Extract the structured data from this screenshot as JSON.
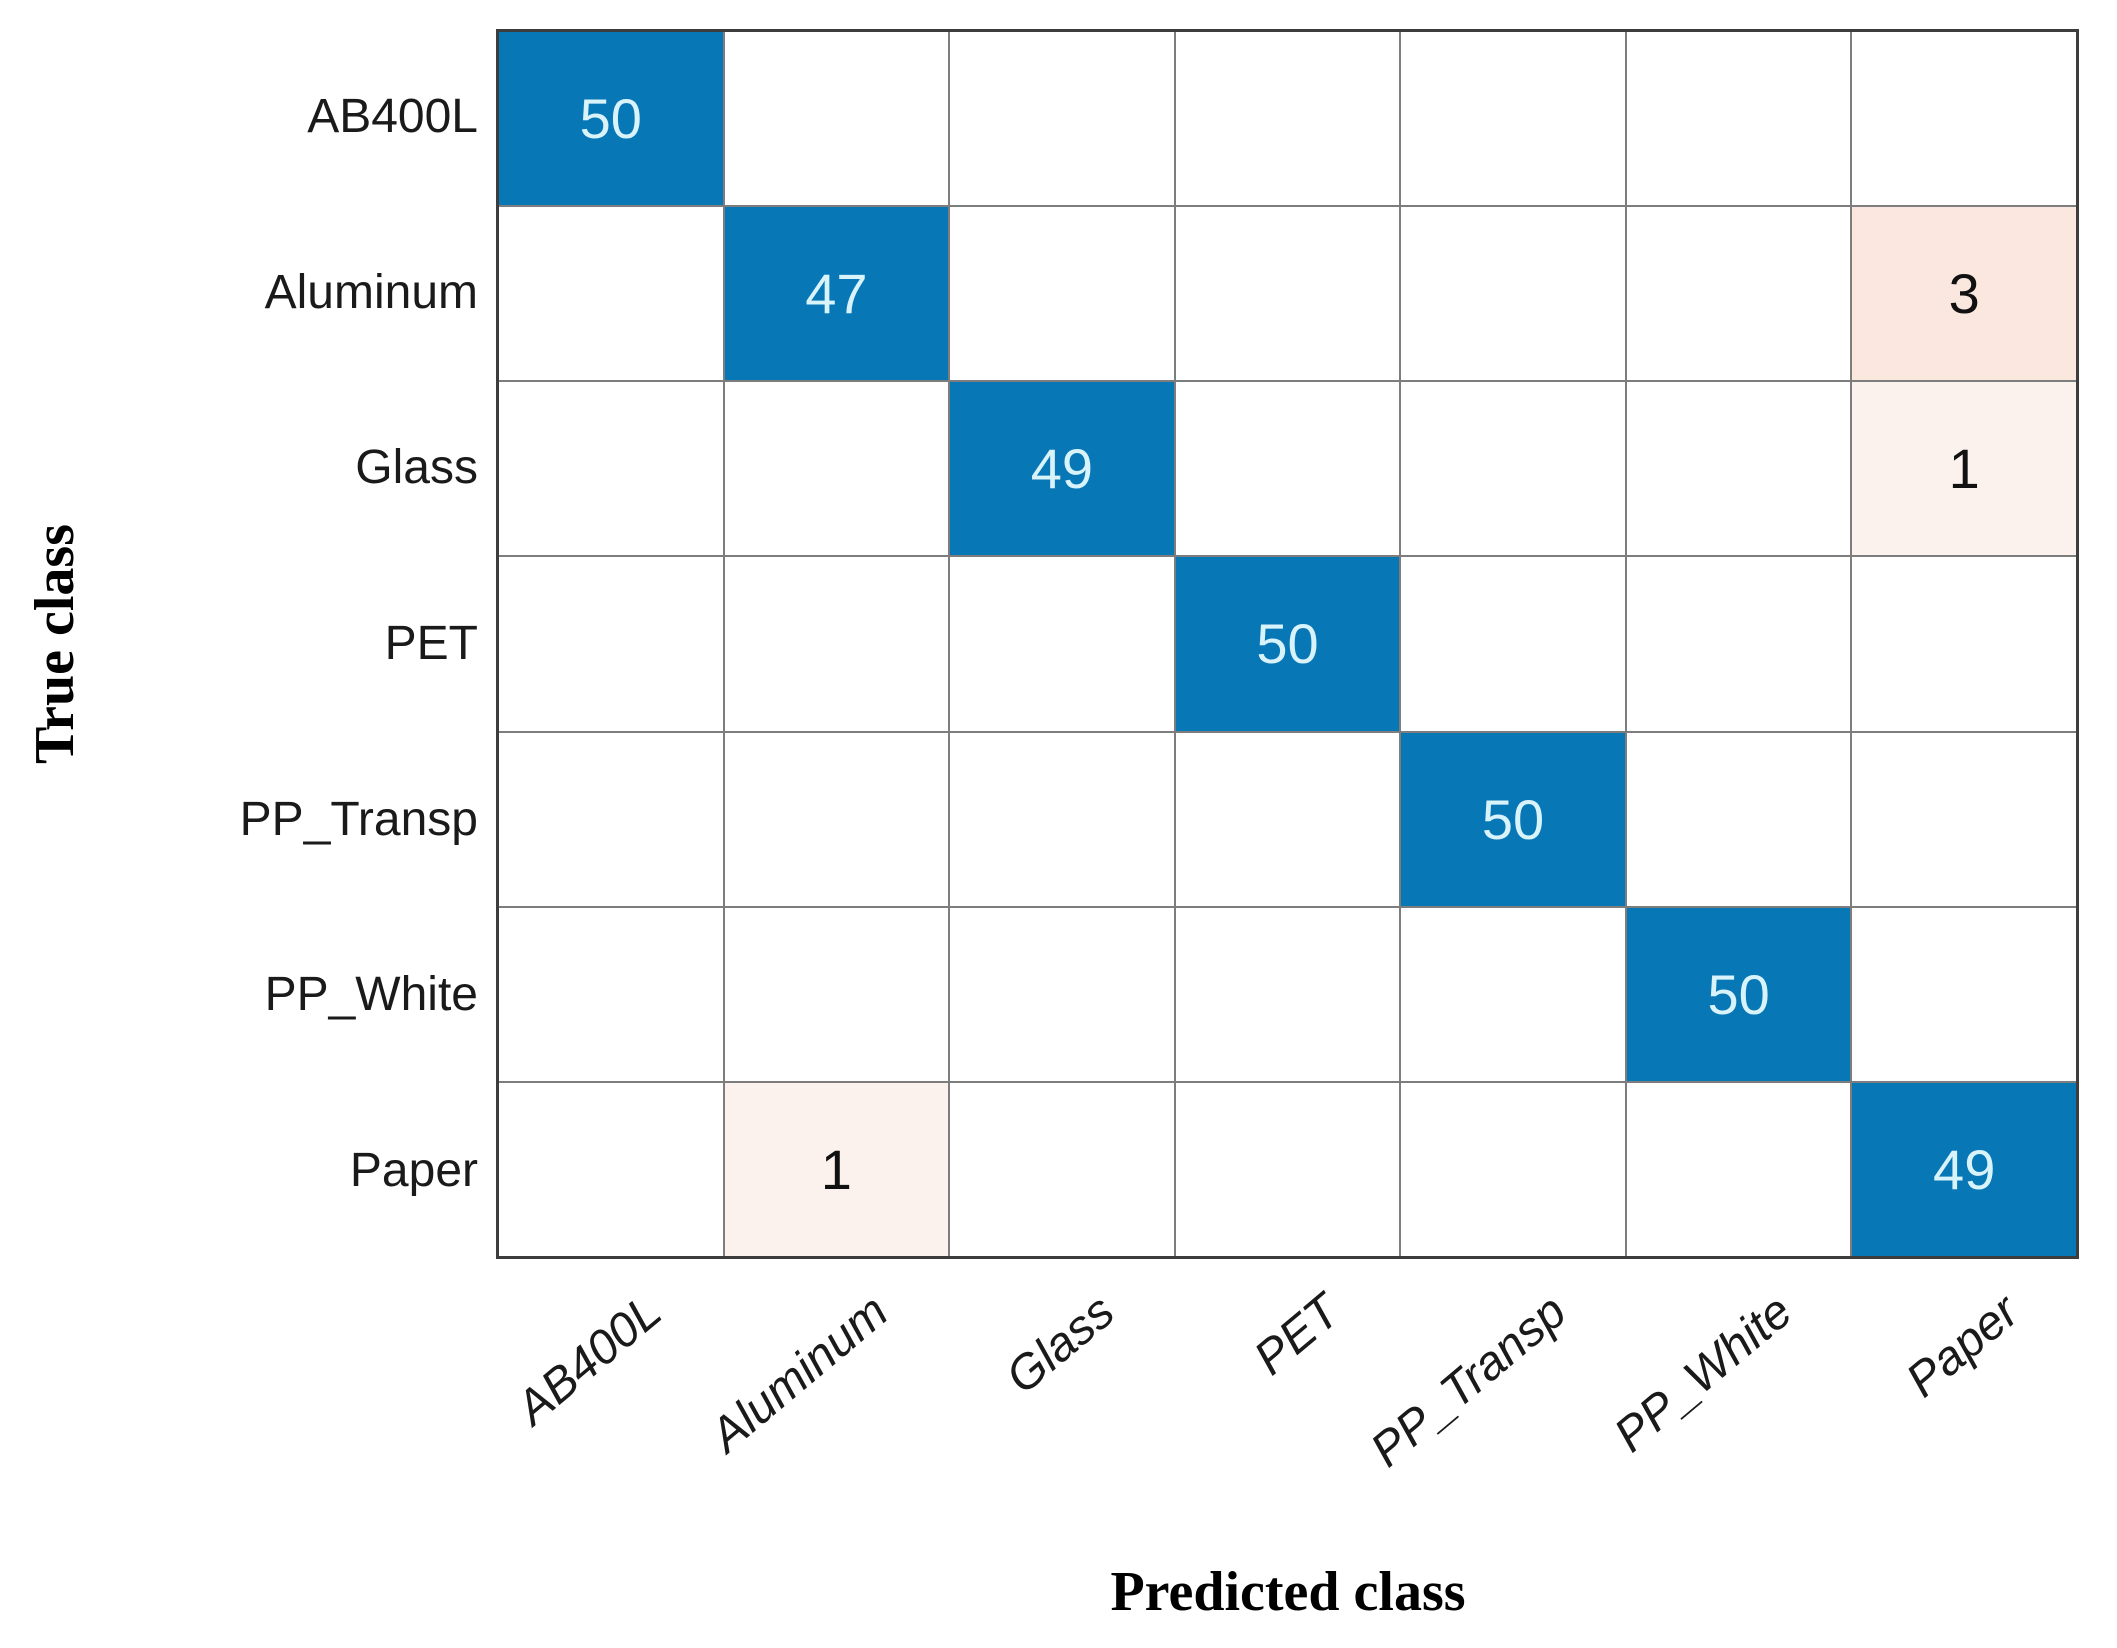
{
  "chart_data": {
    "type": "heatmap",
    "subtype": "confusion-matrix",
    "title": "",
    "xlabel": "Predicted class",
    "ylabel": "True class",
    "classes": [
      "AB400L",
      "Aluminum",
      "Glass",
      "PET",
      "PP_Transp",
      "PP_White",
      "Paper"
    ],
    "x_categories": [
      "AB400L",
      "Aluminum",
      "Glass",
      "PET",
      "PP_Transp",
      "PP_White",
      "Paper"
    ],
    "y_categories": [
      "AB400L",
      "Aluminum",
      "Glass",
      "PET",
      "PP_Transp",
      "PP_White",
      "Paper"
    ],
    "matrix": [
      [
        50,
        0,
        0,
        0,
        0,
        0,
        0
      ],
      [
        0,
        47,
        0,
        0,
        0,
        0,
        3
      ],
      [
        0,
        0,
        49,
        0,
        0,
        0,
        1
      ],
      [
        0,
        0,
        0,
        50,
        0,
        0,
        0
      ],
      [
        0,
        0,
        0,
        0,
        50,
        0,
        0
      ],
      [
        0,
        0,
        0,
        0,
        0,
        50,
        0
      ],
      [
        0,
        1,
        0,
        0,
        0,
        0,
        49
      ]
    ],
    "value_range": [
      0,
      50
    ],
    "grid_on": true,
    "legend": "none",
    "colors": {
      "diagonal": "#0877b6",
      "diagonal_text": "#d9f3fb",
      "off_diagonal_base": "#d95319",
      "off_diagonal_text": "#111111",
      "empty_cell": "#ffffff",
      "grid_line": "#7d7d7d",
      "outer_border": "#3d3d3d",
      "tick_label": "#1a1a1a"
    }
  }
}
